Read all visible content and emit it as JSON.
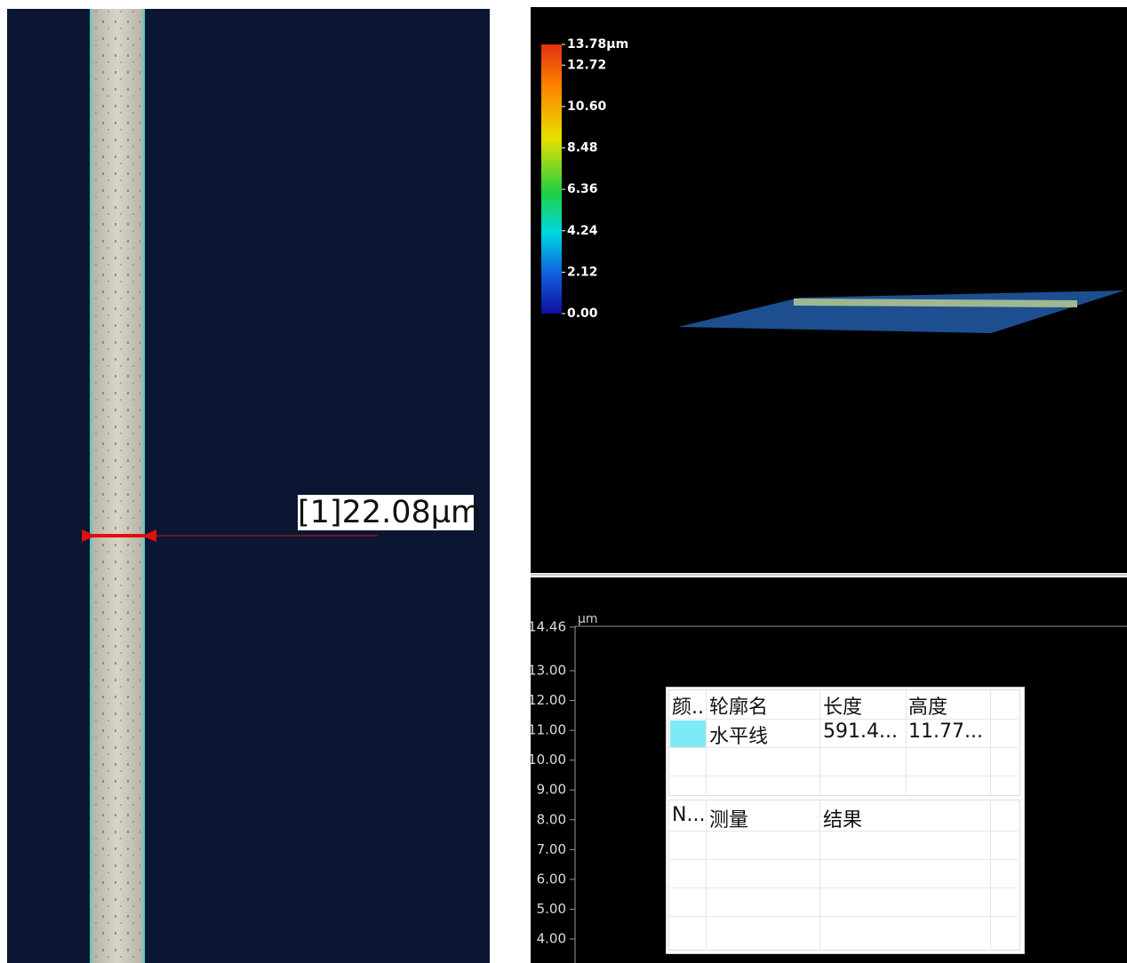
{
  "left_panel": {
    "measurement_label": "[1]22.08µm"
  },
  "view_3d": {
    "colorbar_ticks": [
      {
        "value": 13.78,
        "label": "13.78µm"
      },
      {
        "value": 12.72,
        "label": "12.72"
      },
      {
        "value": 10.6,
        "label": "10.60"
      },
      {
        "value": 8.48,
        "label": "8.48"
      },
      {
        "value": 6.36,
        "label": "6.36"
      },
      {
        "value": 4.24,
        "label": "4.24"
      },
      {
        "value": 2.12,
        "label": "2.12"
      },
      {
        "value": 0,
        "label": "0.00"
      }
    ]
  },
  "profile": {
    "unit": "µm",
    "yticks": [
      {
        "value": 14.46,
        "label": "14.46"
      },
      {
        "value": 13,
        "label": "13.00"
      },
      {
        "value": 12,
        "label": "12.00"
      },
      {
        "value": 11,
        "label": "11.00"
      },
      {
        "value": 10,
        "label": "10.00"
      },
      {
        "value": 9,
        "label": "9.00"
      },
      {
        "value": 8,
        "label": "8.00"
      },
      {
        "value": 7,
        "label": "7.00"
      },
      {
        "value": 6,
        "label": "6.00"
      },
      {
        "value": 5,
        "label": "5.00"
      },
      {
        "value": 4,
        "label": "4.00"
      }
    ]
  },
  "contour_table": {
    "headers": [
      "颜..",
      "轮廓名",
      "长度",
      "高度"
    ],
    "rows": [
      {
        "swatch_color": "#7eeaf5",
        "name": "水平线",
        "length": "591.4...",
        "height": "11.77..."
      }
    ]
  },
  "measure_table": {
    "headers": [
      "N...",
      "测量",
      "结果"
    ]
  }
}
